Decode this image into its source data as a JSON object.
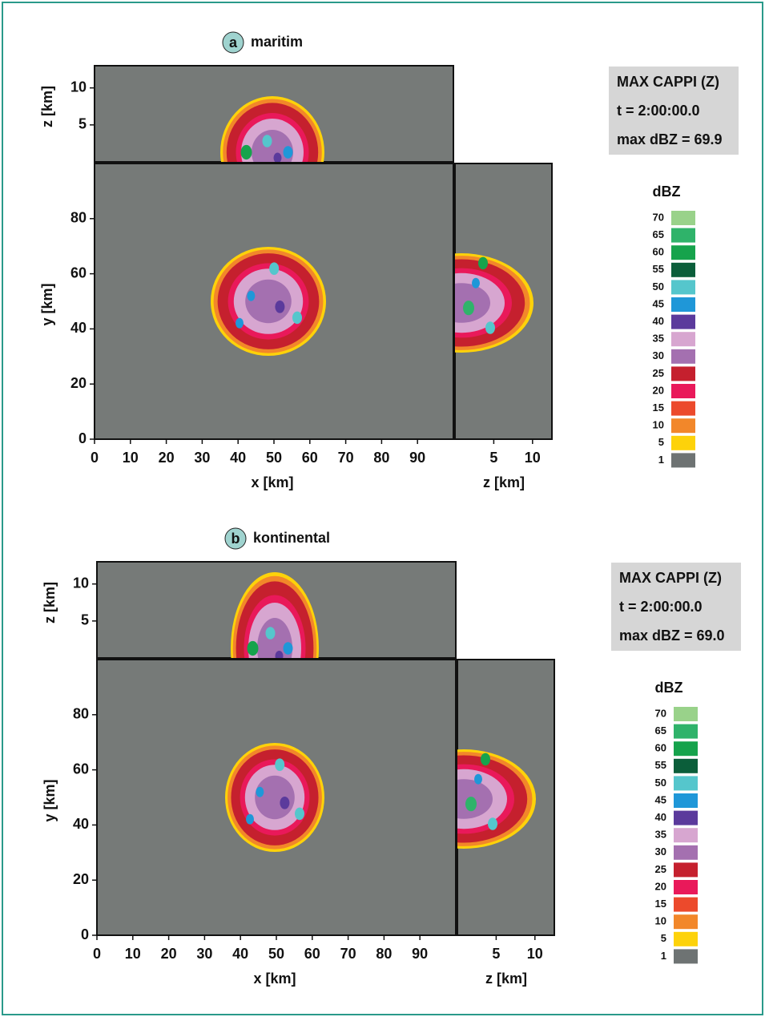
{
  "panels": [
    {
      "letter": "a",
      "title": "maritim",
      "info": [
        "MAX CAPPI (Z)",
        "t = 2:00:00.0",
        "max dBZ = 69.9"
      ],
      "legend": {
        "title": "dBZ",
        "levels": [
          70,
          65,
          60,
          55,
          50,
          45,
          40,
          35,
          30,
          25,
          20,
          15,
          10,
          5,
          1
        ],
        "colors": [
          "#99d28a",
          "#2fb36a",
          "#16a34c",
          "#0b5e3a",
          "#55c6cc",
          "#1f97d8",
          "#5b3a9c",
          "#d7a6d0",
          "#a470b0",
          "#c5202e",
          "#e9195a",
          "#ec4a2c",
          "#f2872a",
          "#fdd20a",
          "#6e7373"
        ]
      },
      "x_axis": {
        "label": "x [km]",
        "lim": [
          0,
          100
        ],
        "ticks": [
          0,
          10,
          20,
          30,
          40,
          50,
          60,
          70,
          80,
          90
        ]
      },
      "y_axis": {
        "label": "y [km]",
        "lim": [
          0,
          100
        ],
        "ticks": [
          0,
          20,
          40,
          60,
          80
        ]
      },
      "z_top": {
        "label": "z [km]",
        "lim": [
          0,
          13
        ],
        "ticks": [
          5,
          10
        ]
      },
      "z_right": {
        "label": "z [km]",
        "lim": [
          0,
          12.5
        ],
        "ticks": [
          5,
          10
        ]
      }
    },
    {
      "letter": "b",
      "title": "kontinental",
      "info": [
        "MAX CAPPI (Z)",
        "t = 2:00:00.0",
        "max dBZ = 69.0"
      ],
      "legend": {
        "title": "dBZ",
        "levels": [
          70,
          65,
          60,
          55,
          50,
          45,
          40,
          35,
          30,
          25,
          20,
          15,
          10,
          5,
          1
        ],
        "colors": [
          "#99d28a",
          "#2fb36a",
          "#16a34c",
          "#0b5e3a",
          "#55c6cc",
          "#1f97d8",
          "#5b3a9c",
          "#d7a6d0",
          "#a470b0",
          "#c5202e",
          "#e9195a",
          "#ec4a2c",
          "#f2872a",
          "#fdd20a",
          "#6e7373"
        ]
      },
      "x_axis": {
        "label": "x [km]",
        "lim": [
          0,
          100
        ],
        "ticks": [
          0,
          10,
          20,
          30,
          40,
          50,
          60,
          70,
          80,
          90
        ]
      },
      "y_axis": {
        "label": "y [km]",
        "lim": [
          0,
          100
        ],
        "ticks": [
          0,
          20,
          40,
          60,
          80
        ]
      },
      "z_top": {
        "label": "z [km]",
        "lim": [
          0,
          13
        ],
        "ticks": [
          5,
          10
        ]
      },
      "z_right": {
        "label": "z [km]",
        "lim": [
          0,
          12.5
        ],
        "ticks": [
          5,
          10
        ]
      }
    }
  ]
}
